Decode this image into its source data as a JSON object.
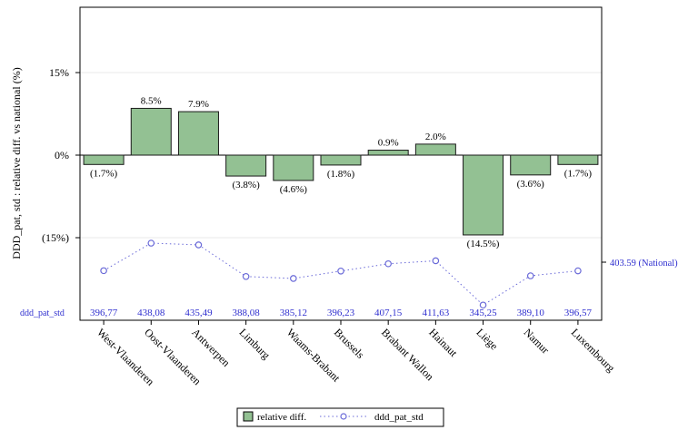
{
  "chart_data": {
    "type": "bar",
    "ylabel": "DDD_pat, std : relative diff. vs national (%)",
    "y_ticks": [
      {
        "value": 15,
        "label": "15%"
      },
      {
        "value": 0,
        "label": "0%"
      },
      {
        "value": -15,
        "label": "(15%)"
      }
    ],
    "ylim": [
      -15,
      15
    ],
    "categories": [
      "West-Vlaanderen",
      "Oost-Vlaanderen",
      "Antwerpen",
      "Limburg",
      "Waams-Brabant",
      "Brussels",
      "Brabant Wallon",
      "Hainaut",
      "Liège",
      "Namur",
      "Luxembourg"
    ],
    "series": [
      {
        "name": "relative diff.",
        "values": [
          -1.7,
          8.5,
          7.9,
          -3.8,
          -4.6,
          -1.8,
          0.9,
          2.0,
          -14.5,
          -3.6,
          -1.7
        ],
        "labels": [
          "(1.7%)",
          "8.5%",
          "7.9%",
          "(3.8%)",
          "(4.6%)",
          "(1.8%)",
          "0.9%",
          "2.0%",
          "(14.5%)",
          "(3.6%)",
          "(1.7%)"
        ]
      },
      {
        "name": "ddd_pat_std",
        "values": [
          396.77,
          438.08,
          435.49,
          388.08,
          385.12,
          396.23,
          407.15,
          411.63,
          345.25,
          389.1,
          396.57
        ],
        "labels": [
          "396,77",
          "438,08",
          "435,49",
          "388,08",
          "385,12",
          "396,23",
          "407,15",
          "411,63",
          "345,25",
          "389,10",
          "396,57"
        ]
      }
    ],
    "row_label": "ddd_pat_std",
    "national_label": "403.59 (National)",
    "colors": {
      "bar_fill": "#93c193",
      "bar_stroke": "#1a1a1a",
      "line": "#6a6ad8",
      "value_text": "#2f2fcf",
      "grid": "#e8e8e8"
    }
  }
}
